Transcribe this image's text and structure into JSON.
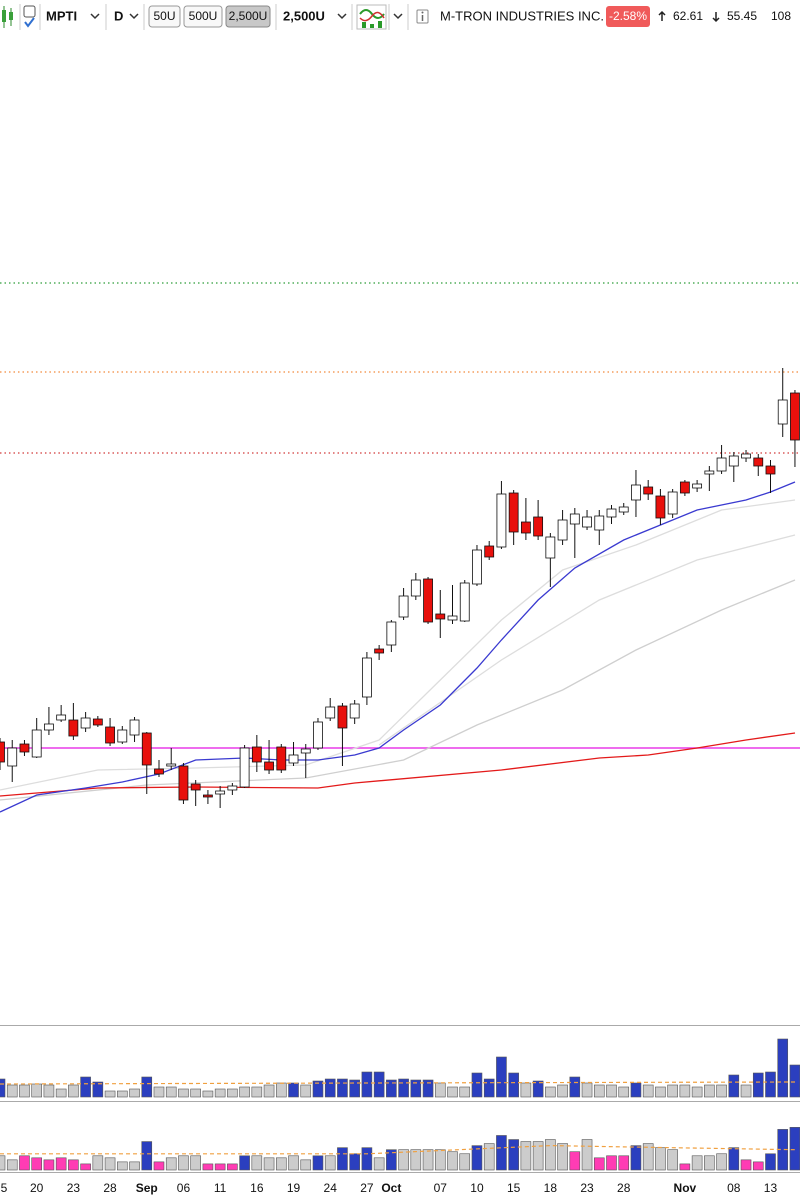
{
  "toolbar": {
    "symbol": "MPTI",
    "interval": "D",
    "buttons": [
      "50U",
      "500U",
      "2,500U"
    ],
    "size": "2,500U",
    "company": "M-TRON INDUSTRIES INC.",
    "change": "-2.58%",
    "high": "62.61",
    "low": "55.45",
    "extra": "108"
  },
  "chart_data": {
    "type": "candlestick",
    "categories": [
      "5",
      null,
      null,
      "20",
      null,
      null,
      "23",
      null,
      null,
      "28",
      null,
      null,
      "Sep",
      null,
      null,
      "06",
      null,
      null,
      "11",
      null,
      null,
      "16",
      null,
      null,
      "19",
      null,
      null,
      "24",
      null,
      null,
      "27",
      null,
      "Oct",
      null,
      null,
      null,
      "07",
      null,
      null,
      "10",
      null,
      null,
      "15",
      null,
      null,
      "18",
      null,
      null,
      "23",
      null,
      null,
      "28",
      null,
      null,
      null,
      null,
      "Nov",
      null,
      null,
      null,
      "08",
      null,
      null,
      "13",
      null,
      null
    ],
    "open": [
      35.32,
      34.36,
      35.24,
      34.72,
      35.8,
      36.2,
      36.2,
      35.88,
      36.24,
      35.92,
      35.32,
      35.6,
      35.68,
      34.24,
      34.36,
      34.36,
      33.64,
      33.2,
      33.24,
      33.4,
      33.52,
      35.12,
      34.52,
      35.12,
      34.48,
      34.88,
      35.08,
      36.28,
      36.76,
      36.28,
      37.12,
      39.04,
      39.2,
      40.32,
      41.16,
      41.84,
      40.44,
      40.2,
      40.16,
      41.64,
      43.16,
      43.12,
      45.28,
      44.12,
      44.32,
      42.68,
      43.4,
      44.04,
      43.92,
      43.8,
      44.32,
      44.52,
      45,
      45.52,
      45.16,
      44.44,
      45.72,
      45.48,
      46.04,
      46.16,
      46.36,
      46.68,
      46.68,
      46.36,
      48.04,
      49.28
    ],
    "high": [
      35.48,
      35.4,
      35.4,
      36.28,
      36.72,
      36.8,
      36.88,
      36.52,
      36.36,
      36.28,
      35.96,
      36.32,
      35.72,
      34.6,
      35.08,
      34.48,
      33.8,
      33.4,
      33.56,
      33.68,
      35.2,
      35.6,
      35.4,
      35.24,
      35.32,
      35.24,
      36.28,
      37.08,
      36.88,
      37,
      38.92,
      39.2,
      40.2,
      41.48,
      42.08,
      41.92,
      41.4,
      41.6,
      41.8,
      43.2,
      43.36,
      45.76,
      45.4,
      45.08,
      45,
      43.68,
      44.6,
      44.68,
      44.6,
      44.6,
      44.8,
      44.88,
      46.2,
      45.8,
      45.44,
      45.44,
      45.8,
      45.8,
      46.36,
      47.2,
      46.92,
      47,
      46.84,
      46.6,
      50.28,
      49.4
    ],
    "low": [
      34.2,
      33.72,
      34.76,
      34.68,
      35.6,
      36.12,
      35.4,
      35.72,
      35.92,
      35.16,
      35.24,
      35.32,
      33.24,
      33.92,
      34.2,
      32.84,
      32.76,
      32.84,
      32.68,
      33.2,
      33.48,
      34.12,
      34.04,
      34.08,
      34.36,
      33.88,
      35,
      36.16,
      34.36,
      36.04,
      36.8,
      38.6,
      38.92,
      40.2,
      41,
      40.04,
      39.48,
      40.04,
      40.12,
      41.56,
      42.6,
      43.04,
      43.2,
      43.4,
      43.4,
      41.52,
      43.2,
      42.68,
      43.8,
      43.2,
      44.04,
      44.4,
      44.32,
      45,
      44,
      44.28,
      45.16,
      45.32,
      45.36,
      46.04,
      45.72,
      46.52,
      45.96,
      45.28,
      47.52,
      46.32
    ],
    "close": [
      34.52,
      35.08,
      34.92,
      35.8,
      36.04,
      36.4,
      35.56,
      36.28,
      36,
      35.28,
      35.8,
      36.2,
      34.4,
      34.04,
      34.44,
      33,
      33.4,
      33.12,
      33.36,
      33.56,
      35.08,
      34.52,
      34.2,
      34.2,
      34.8,
      35.04,
      36.12,
      36.72,
      35.88,
      36.84,
      38.68,
      38.88,
      40.12,
      41.16,
      41.8,
      40.12,
      40.24,
      40.36,
      41.68,
      43,
      42.72,
      45.24,
      43.72,
      43.68,
      43.56,
      43.52,
      44.2,
      44.44,
      44.32,
      44.36,
      44.64,
      44.72,
      45.6,
      45.24,
      44.28,
      45.32,
      45.28,
      45.64,
      46.16,
      46.68,
      46.76,
      46.84,
      46.36,
      46.04,
      49,
      47.4
    ],
    "up_color": "#ffffff",
    "down_color": "#e8100c",
    "ylim": [
      24,
      64
    ],
    "levels": [
      {
        "value": 53.68,
        "color": "#2f9e3a",
        "style": "dotted"
      },
      {
        "value": 50.12,
        "color": "#f28a3c",
        "style": "dotted"
      },
      {
        "value": 46.88,
        "color": "#d23a3a",
        "style": "dotted"
      },
      {
        "value": 35.08,
        "color": "#e83ce8",
        "style": "solid"
      }
    ],
    "overlays": [
      {
        "color": "#dddddd",
        "x": [
          0,
          8,
          16,
          25,
          31,
          36,
          41,
          46,
          52,
          59,
          65
        ],
        "values": [
          33.4,
          34.2,
          34.28,
          34.4,
          35.4,
          37.8,
          40.2,
          42.2,
          43.2,
          44.6,
          45
        ]
      },
      {
        "color": "#dddddd",
        "x": [
          31,
          41,
          49,
          57,
          65
        ],
        "values": [
          35.2,
          38.6,
          41,
          42.6,
          43.6
        ]
      },
      {
        "color": "#cfcfcf",
        "x": [
          0,
          12,
          25,
          33,
          39,
          46,
          52,
          59,
          65
        ],
        "values": [
          33,
          33.6,
          33.88,
          34.6,
          36,
          37.4,
          39,
          40.6,
          41.8
        ]
      },
      {
        "color": "#e31a1a",
        "x": [
          0,
          8,
          16,
          26,
          29,
          41,
          49,
          53,
          57,
          61,
          65
        ],
        "values": [
          33.16,
          33.48,
          33.52,
          33.48,
          33.68,
          34.2,
          34.68,
          34.8,
          35.08,
          35.4,
          35.68
        ]
      },
      {
        "color": "#3a3ad0",
        "x": [
          0,
          3,
          7,
          10,
          13,
          16,
          20,
          23,
          26,
          29,
          31,
          33,
          36,
          39,
          41,
          44,
          47,
          51,
          54,
          57,
          61,
          63,
          65
        ],
        "values": [
          32.52,
          33.2,
          33.48,
          33.72,
          34.04,
          34.6,
          34.68,
          34.6,
          34.6,
          34.8,
          35.08,
          35.8,
          36.8,
          38.28,
          39.4,
          41,
          42.28,
          43.4,
          44,
          44.6,
          45,
          45.32,
          45.72
        ]
      }
    ],
    "volume_panes": [
      {
        "ylim": [
          0,
          70
        ],
        "series": [
          {
            "color": "#2b3fbf",
            "x": [
              0,
              7,
              8,
              12,
              24,
              26,
              27,
              28,
              29,
              30,
              31,
              32,
              33,
              34,
              35,
              39,
              40,
              41,
              42,
              44,
              47,
              52,
              60,
              62,
              63,
              64,
              65
            ],
            "values": [
              18,
              20,
              15,
              20,
              14,
              16,
              18,
              18,
              17,
              25,
              25,
              17,
              18,
              17,
              17,
              24,
              18,
              40,
              24,
              16,
              20,
              14,
              22,
              24,
              25,
              58,
              32
            ]
          },
          {
            "color": "#cccccc",
            "x": [
              1,
              2,
              3,
              4,
              5,
              6,
              9,
              10,
              11,
              13,
              14,
              15,
              16,
              17,
              18,
              19,
              20,
              21,
              22,
              23,
              25,
              36,
              37,
              38,
              43,
              45,
              46,
              48,
              49,
              50,
              51,
              53,
              54,
              55,
              56,
              57,
              58,
              59,
              61
            ],
            "values": [
              12,
              12,
              13,
              12,
              8,
              12,
              6,
              6,
              8,
              10,
              10,
              8,
              8,
              6,
              8,
              8,
              10,
              10,
              12,
              14,
              12,
              14,
              10,
              10,
              14,
              10,
              12,
              14,
              12,
              12,
              10,
              12,
              10,
              12,
              12,
              10,
              12,
              12,
              12
            ]
          }
        ],
        "average": {
          "color": "#f0a040",
          "x": [
            0,
            30,
            65
          ],
          "values": [
            13,
            14,
            15
          ]
        }
      },
      {
        "ylim": [
          0,
          65
        ],
        "series": [
          {
            "color": "#2b3fbf",
            "x": [
              12,
              20,
              26,
              28,
              29,
              30,
              32,
              39,
              41,
              42,
              52,
              60,
              63,
              64,
              65
            ],
            "values": [
              28,
              14,
              14,
              22,
              16,
              22,
              20,
              24,
              34,
              30,
              24,
              22,
              16,
              40,
              42
            ]
          },
          {
            "color": "#ff3cb4",
            "x": [
              2,
              3,
              4,
              5,
              6,
              7,
              13,
              17,
              18,
              19,
              47,
              49,
              50,
              51,
              56,
              61,
              62
            ],
            "values": [
              14,
              12,
              10,
              12,
              10,
              6,
              8,
              6,
              6,
              6,
              18,
              12,
              14,
              14,
              6,
              10,
              8
            ]
          },
          {
            "color": "#cccccc",
            "x": [
              0,
              1,
              8,
              9,
              10,
              11,
              14,
              15,
              16,
              21,
              22,
              23,
              24,
              25,
              27,
              31,
              33,
              34,
              35,
              36,
              37,
              38,
              40,
              43,
              44,
              45,
              46,
              48,
              53,
              54,
              55,
              57,
              58,
              59
            ],
            "values": [
              14,
              10,
              14,
              12,
              8,
              8,
              12,
              14,
              14,
              14,
              12,
              12,
              14,
              10,
              14,
              12,
              20,
              20,
              20,
              20,
              18,
              16,
              26,
              28,
              28,
              30,
              26,
              30,
              26,
              22,
              20,
              14,
              14,
              16
            ]
          }
        ],
        "average": {
          "color": "#f0a040",
          "x": [
            0,
            30,
            45,
            55,
            65
          ],
          "values": [
            16,
            16,
            24,
            22,
            20
          ]
        }
      }
    ]
  }
}
